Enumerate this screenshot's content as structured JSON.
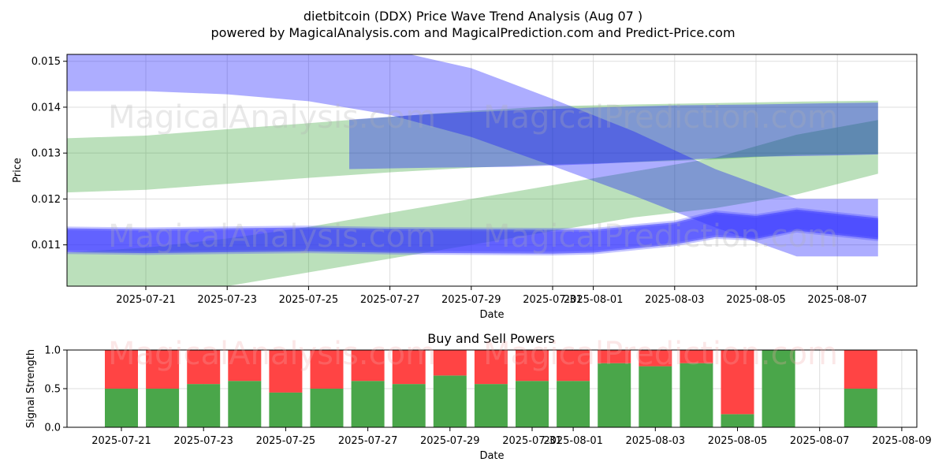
{
  "title_line1": "dietbitcoin (DDX) Price Wave Trend Analysis (Aug 07 )",
  "title_line2": "powered by MagicalAnalysis.com and MagicalPrediction.com and Predict-Price.com",
  "watermarks": [
    "MagicalAnalysis.com",
    "MagicalPrediction.com"
  ],
  "chart_data": [
    {
      "type": "area",
      "title": "",
      "xlabel": "Date",
      "ylabel": "Price",
      "ylim": [
        0.0101,
        0.01515
      ],
      "grid": true,
      "x_ticks": [
        "2025-07-21",
        "2025-07-23",
        "2025-07-25",
        "2025-07-27",
        "2025-07-29",
        "2025-07-31",
        "2025-08-01",
        "2025-08-03",
        "2025-08-05",
        "2025-08-07"
      ],
      "y_ticks": [
        "0.011",
        "0.012",
        "0.013",
        "0.014",
        "0.015"
      ],
      "colors": {
        "green_band": "#2ca02c",
        "blue_band": "#0000ff",
        "blue_wave": "#3333ff"
      },
      "bands": [
        {
          "color": "green",
          "x": [
            "2025-07-19",
            "2025-07-21",
            "2025-07-23",
            "2025-07-25",
            "2025-07-27",
            "2025-07-29",
            "2025-07-31",
            "2025-08-02",
            "2025-08-04",
            "2025-08-06",
            "2025-08-08"
          ],
          "lower": [
            0.01214,
            0.0122,
            0.01233,
            0.01246,
            0.01258,
            0.01268,
            0.01275,
            0.0128,
            0.01286,
            0.01296,
            0.01298
          ],
          "upper": [
            0.01332,
            0.01338,
            0.01352,
            0.01365,
            0.01379,
            0.01392,
            0.01402,
            0.01406,
            0.01409,
            0.01412,
            0.01414
          ]
        },
        {
          "color": "green",
          "x": [
            "2025-07-19",
            "2025-07-21",
            "2025-07-23",
            "2025-07-25",
            "2025-07-27",
            "2025-07-29",
            "2025-07-31",
            "2025-08-02",
            "2025-08-04",
            "2025-08-06",
            "2025-08-08"
          ],
          "lower": [
            0.0101,
            0.0101,
            0.0101,
            0.0104,
            0.0107,
            0.011,
            0.0113,
            0.0116,
            0.0118,
            0.0121,
            0.01255
          ],
          "upper": [
            0.01083,
            0.01094,
            0.01114,
            0.01139,
            0.0117,
            0.012,
            0.0123,
            0.0126,
            0.0129,
            0.0134,
            0.01372
          ]
        },
        {
          "color": "blue",
          "x": [
            "2025-07-19",
            "2025-07-21",
            "2025-07-23",
            "2025-07-25",
            "2025-07-27",
            "2025-07-29",
            "2025-07-31",
            "2025-08-02",
            "2025-08-04",
            "2025-08-06",
            "2025-08-08"
          ],
          "lower": [
            0.01435,
            0.01435,
            0.01428,
            0.01413,
            0.01383,
            0.01335,
            0.01272,
            0.01207,
            0.01138,
            0.01075,
            0.01075
          ],
          "upper": [
            0.01525,
            0.01525,
            0.01525,
            0.01525,
            0.01525,
            0.01485,
            0.01418,
            0.01347,
            0.01265,
            0.012,
            0.012
          ]
        },
        {
          "color": "blue",
          "x": [
            "2025-07-26",
            "2025-07-28",
            "2025-07-30",
            "2025-08-01",
            "2025-08-03",
            "2025-08-05",
            "2025-08-07",
            "2025-08-08"
          ],
          "lower": [
            0.01265,
            0.01268,
            0.0127,
            0.01276,
            0.01285,
            0.01292,
            0.01295,
            0.01297
          ],
          "upper": [
            0.01373,
            0.01385,
            0.01393,
            0.01399,
            0.01404,
            0.01406,
            0.01409,
            0.0141
          ]
        }
      ],
      "waves": [
        {
          "x": [
            "2025-07-19",
            "2025-07-21",
            "2025-07-23",
            "2025-07-25",
            "2025-07-27",
            "2025-07-29",
            "2025-07-31",
            "2025-08-01",
            "2025-08-03",
            "2025-08-04",
            "2025-08-05",
            "2025-08-06",
            "2025-08-08"
          ],
          "lower": [
            0.01084,
            0.01082,
            0.01084,
            0.01086,
            0.01083,
            0.01082,
            0.01081,
            0.01083,
            0.01101,
            0.01117,
            0.01113,
            0.01131,
            0.01112
          ],
          "upper": [
            0.01136,
            0.01134,
            0.01136,
            0.01138,
            0.01135,
            0.01134,
            0.01133,
            0.01133,
            0.01149,
            0.01171,
            0.01163,
            0.01177,
            0.01158
          ]
        }
      ]
    },
    {
      "type": "bar",
      "title": "Buy and Sell Powers",
      "xlabel": "Date",
      "ylabel": "Signal Strength",
      "ylim": [
        0,
        1
      ],
      "grid": true,
      "x_ticks": [
        "2025-07-21",
        "2025-07-23",
        "2025-07-25",
        "2025-07-27",
        "2025-07-29",
        "2025-07-31",
        "2025-08-01",
        "2025-08-03",
        "2025-08-05",
        "2025-08-07",
        "2025-08-09"
      ],
      "y_ticks": [
        "0.0",
        "0.5",
        "1.0"
      ],
      "categories": [
        "2025-07-21",
        "2025-07-22",
        "2025-07-23",
        "2025-07-24",
        "2025-07-25",
        "2025-07-26",
        "2025-07-27",
        "2025-07-28",
        "2025-07-29",
        "2025-07-30",
        "2025-07-31",
        "2025-08-01",
        "2025-08-02",
        "2025-08-03",
        "2025-08-04",
        "2025-08-05",
        "2025-08-06",
        "2025-08-07",
        "2025-08-08"
      ],
      "series": [
        {
          "color": "#4aa64a",
          "values": [
            0.5,
            0.5,
            0.56,
            0.6,
            0.45,
            0.5,
            0.6,
            0.56,
            0.67,
            0.56,
            0.6,
            0.6,
            0.83,
            0.79,
            0.83,
            0.17,
            1.0,
            null,
            0.5
          ]
        },
        {
          "color": "#ff4444",
          "values": [
            0.5,
            0.5,
            0.44,
            0.4,
            0.55,
            0.5,
            0.4,
            0.44,
            0.33,
            0.44,
            0.4,
            0.4,
            0.17,
            0.21,
            0.17,
            0.83,
            0.0,
            null,
            0.5
          ]
        }
      ]
    }
  ]
}
